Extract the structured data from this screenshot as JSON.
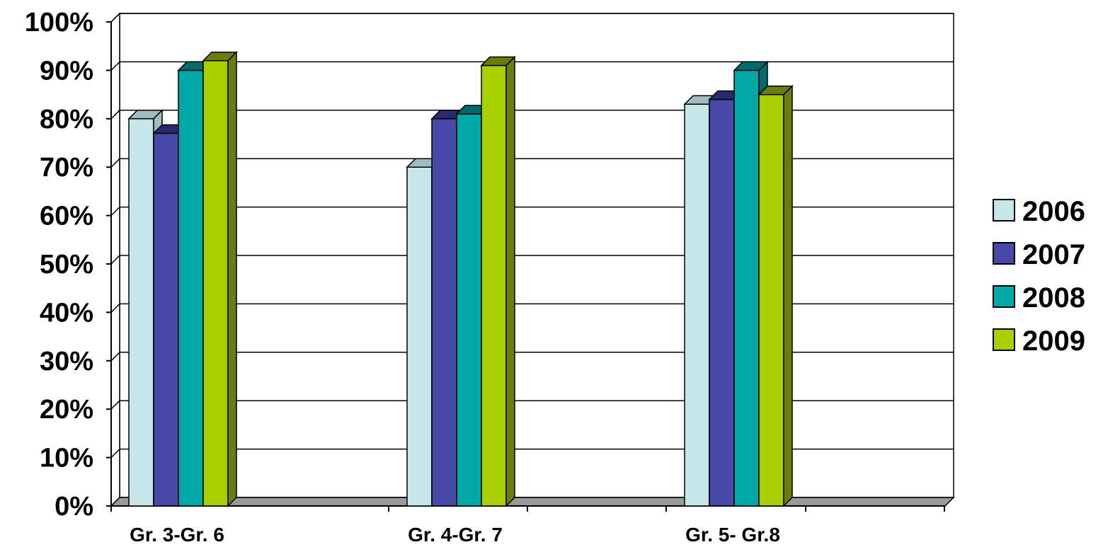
{
  "chart_data": {
    "type": "bar",
    "categories": [
      "Gr. 3-Gr. 6",
      "Gr. 4-Gr. 7",
      "Gr. 5- Gr.8"
    ],
    "series": [
      {
        "name": "2006",
        "color": "#c6e6ea",
        "side": "#9fbcc0",
        "values": [
          80,
          70,
          83
        ]
      },
      {
        "name": "2007",
        "color": "#4848a8",
        "side": "#2a2a70",
        "values": [
          77,
          80,
          84
        ]
      },
      {
        "name": "2008",
        "color": "#00a8a8",
        "side": "#006a6e",
        "values": [
          90,
          81,
          90
        ]
      },
      {
        "name": "2009",
        "color": "#a8d000",
        "side": "#6a7e10",
        "values": [
          92,
          91,
          85
        ]
      }
    ],
    "y_ticks": [
      "0%",
      "10%",
      "20%",
      "30%",
      "40%",
      "50%",
      "60%",
      "70%",
      "80%",
      "90%",
      "100%"
    ],
    "ylim": [
      0,
      100
    ],
    "legend_position": "right",
    "grid": true,
    "three_d": true
  }
}
